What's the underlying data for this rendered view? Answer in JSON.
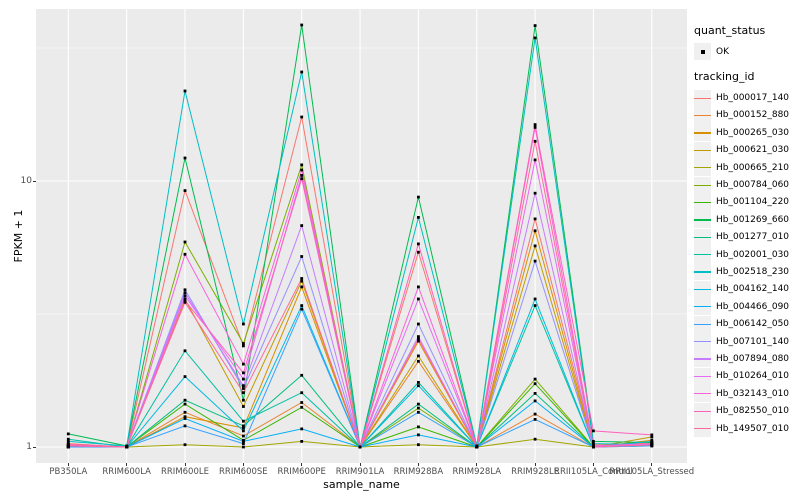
{
  "figure": {
    "background": "#FFFFFF",
    "panel_background": "#EBEBEB",
    "gridline_color": "#FFFFFF",
    "tick_color": "#333333",
    "tick_label_color": "#4D4D4D"
  },
  "axes": {
    "x_title": "sample_name",
    "y_title": "FPKM + 1"
  },
  "legend": {
    "position": "right",
    "quant_status_title": "quant_status",
    "quant_status_value": "OK",
    "tracking_id_title": "tracking_id"
  },
  "chart_data": {
    "type": "line",
    "title": "",
    "xlabel": "sample_name",
    "ylabel": "FPKM + 1",
    "y_scale": "log10",
    "ylim": [
      0.87,
      44.3
    ],
    "grid": true,
    "legend_position": "right",
    "point_marker": "black-square",
    "y_ticks": [
      {
        "label": "10",
        "value": 10
      },
      {
        "label": "1",
        "value": 1
      }
    ],
    "minor_gridlines_at": [
      3.162,
      31.62
    ],
    "categories": [
      "PB350LA",
      "RRIM600LA",
      "RRIM600LE",
      "RRIM600SE",
      "RRIM600PE",
      "RRIM901LA",
      "RRIM928BA",
      "RRIM928LA",
      "RRIM928LE",
      "RRII105LA_Control",
      "RRII105LA_Stressed"
    ],
    "series": [
      {
        "name": "Hb_000017_140",
        "color": "#F8766D",
        "values": [
          1.03,
          1.0,
          9.2,
          2.4,
          17.4,
          1.0,
          5.4,
          1.0,
          7.2,
          1.02,
          1.02
        ]
      },
      {
        "name": "Hb_000152_880",
        "color": "#EA8331",
        "values": [
          1.0,
          1.0,
          1.35,
          1.1,
          1.47,
          1.0,
          2.1,
          1.0,
          1.33,
          1.0,
          1.04
        ]
      },
      {
        "name": "Hb_000265_030",
        "color": "#D89000",
        "values": [
          1.0,
          1.0,
          1.3,
          1.18,
          4.0,
          1.0,
          2.5,
          1.0,
          6.5,
          1.0,
          1.06
        ]
      },
      {
        "name": "Hb_000621_030",
        "color": "#C09B00",
        "values": [
          1.0,
          1.0,
          3.6,
          1.42,
          4.2,
          1.0,
          2.2,
          1.0,
          5.7,
          1.0,
          1.09
        ]
      },
      {
        "name": "Hb_000665_210",
        "color": "#A3A500",
        "values": [
          1.0,
          1.0,
          1.02,
          1.0,
          1.05,
          1.0,
          1.02,
          1.0,
          1.07,
          1.0,
          1.01
        ]
      },
      {
        "name": "Hb_000784_060",
        "color": "#7CAE00",
        "values": [
          1.01,
          1.0,
          5.9,
          2.45,
          11.5,
          1.0,
          1.4,
          1.0,
          1.8,
          1.0,
          1.02
        ]
      },
      {
        "name": "Hb_001104_220",
        "color": "#39B600",
        "values": [
          1.01,
          1.0,
          1.45,
          1.06,
          1.41,
          1.0,
          1.19,
          1.0,
          1.73,
          1.0,
          1.02
        ]
      },
      {
        "name": "Hb_001269_660",
        "color": "#00BB4E",
        "values": [
          1.12,
          1.01,
          12.2,
          1.5,
          38.6,
          1.0,
          8.7,
          1.01,
          38.4,
          1.05,
          1.04
        ]
      },
      {
        "name": "Hb_001277_010",
        "color": "#00BF7D",
        "values": [
          1.02,
          1.0,
          1.5,
          1.2,
          1.86,
          1.0,
          1.45,
          1.0,
          1.59,
          1.0,
          1.03
        ]
      },
      {
        "name": "Hb_002001_030",
        "color": "#00C1A3",
        "values": [
          1.07,
          1.0,
          2.3,
          1.25,
          1.6,
          1.0,
          1.75,
          1.0,
          3.4,
          1.0,
          1.02
        ]
      },
      {
        "name": "Hb_002518_230",
        "color": "#00BFC4",
        "values": [
          1.05,
          1.01,
          21.8,
          2.9,
          25.7,
          1.0,
          7.3,
          1.01,
          34.5,
          1.03,
          1.02
        ]
      },
      {
        "name": "Hb_004162_140",
        "color": "#00BAE0",
        "values": [
          1.0,
          1.0,
          1.84,
          1.15,
          3.4,
          1.0,
          1.7,
          1.0,
          3.6,
          1.0,
          1.05
        ]
      },
      {
        "name": "Hb_004466_090",
        "color": "#00B0F6",
        "values": [
          1.0,
          1.0,
          1.28,
          1.05,
          1.17,
          1.0,
          1.11,
          1.0,
          1.49,
          1.0,
          1.02
        ]
      },
      {
        "name": "Hb_006142_050",
        "color": "#35A2FF",
        "values": [
          1.0,
          1.0,
          1.2,
          1.03,
          3.3,
          1.0,
          1.35,
          1.0,
          1.27,
          1.0,
          1.01
        ]
      },
      {
        "name": "Hb_007101_140",
        "color": "#9590FF",
        "values": [
          1.01,
          1.0,
          3.9,
          1.66,
          5.2,
          1.0,
          2.9,
          1.0,
          5.0,
          1.0,
          1.02
        ]
      },
      {
        "name": "Hb_007894_080",
        "color": "#C77CFF",
        "values": [
          1.01,
          1.0,
          3.8,
          1.7,
          6.8,
          1.0,
          2.6,
          1.0,
          9.0,
          1.0,
          1.03
        ]
      },
      {
        "name": "Hb_010264_010",
        "color": "#E76BF3",
        "values": [
          1.02,
          1.0,
          3.7,
          1.8,
          10.5,
          1.0,
          3.6,
          1.0,
          12.0,
          1.0,
          1.02
        ]
      },
      {
        "name": "Hb_032143_010",
        "color": "#FA62DB",
        "values": [
          1.02,
          1.0,
          5.3,
          2.05,
          11.0,
          1.0,
          4.0,
          1.0,
          15.9,
          1.01,
          1.03
        ]
      },
      {
        "name": "Hb_082550_010",
        "color": "#FF62BC",
        "values": [
          1.02,
          1.0,
          3.55,
          1.9,
          10.2,
          1.0,
          5.8,
          1.0,
          16.3,
          1.15,
          1.11
        ]
      },
      {
        "name": "Hb_149507_010",
        "color": "#FF6A98",
        "values": [
          1.01,
          1.0,
          3.5,
          1.6,
          4.3,
          1.0,
          2.55,
          1.0,
          14.1,
          1.0,
          1.02
        ]
      }
    ]
  }
}
